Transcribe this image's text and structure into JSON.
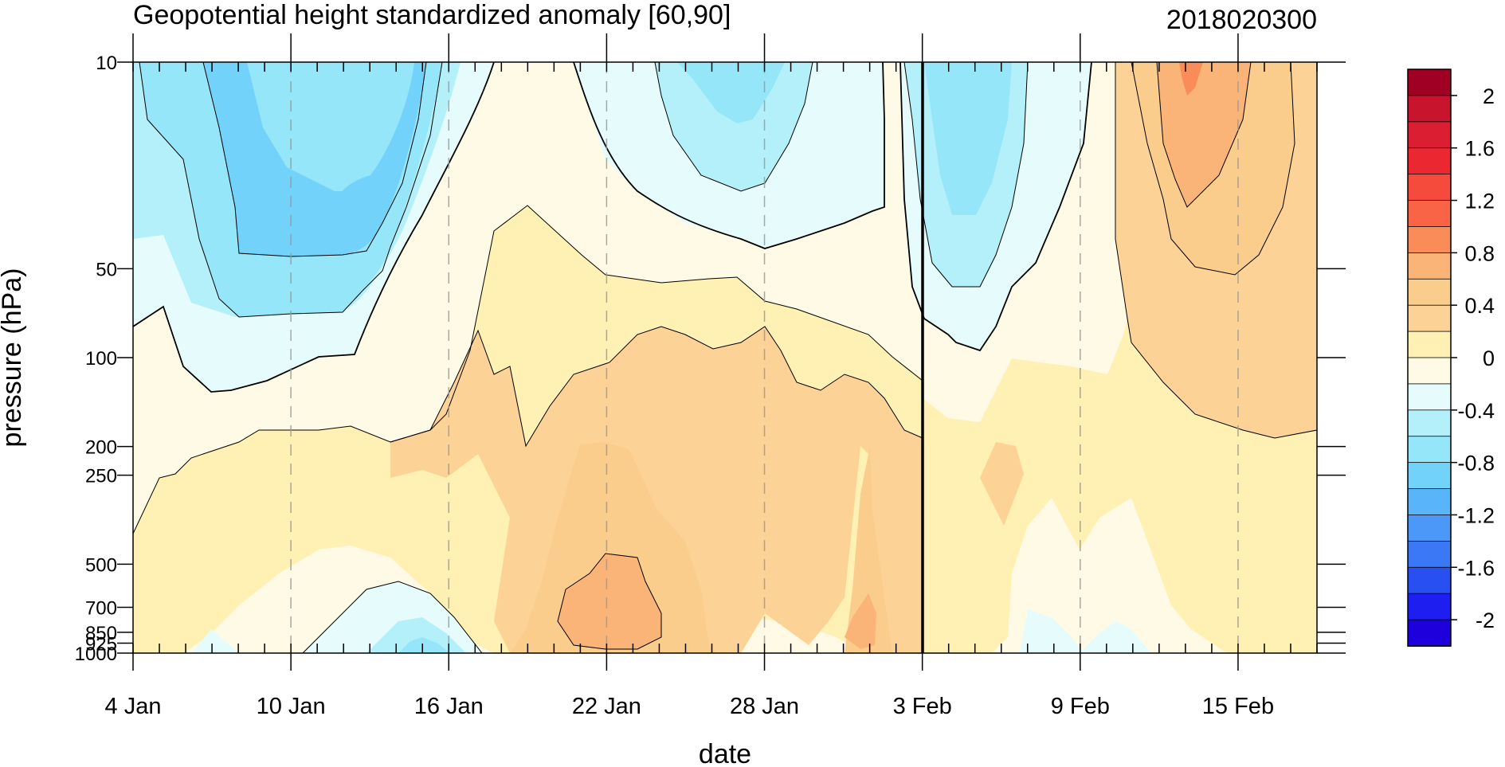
{
  "chart_data": {
    "type": "heatmap",
    "title": "Geopotential height standardized anomaly [60,90]",
    "date_stamp": "2018020300",
    "xlabel": "date",
    "ylabel": "pressure (hPa)",
    "x_range": [
      "2018-01-04",
      "2018-02-18"
    ],
    "x_ticks": [
      {
        "date": "2018-01-04",
        "label": "4 Jan"
      },
      {
        "date": "2018-01-10",
        "label": "10 Jan"
      },
      {
        "date": "2018-01-16",
        "label": "16 Jan"
      },
      {
        "date": "2018-01-22",
        "label": "22 Jan"
      },
      {
        "date": "2018-01-28",
        "label": "28 Jan"
      },
      {
        "date": "2018-02-03",
        "label": "3 Feb"
      },
      {
        "date": "2018-02-09",
        "label": "9 Feb"
      },
      {
        "date": "2018-02-15",
        "label": "15 Feb"
      }
    ],
    "y_scale": "log",
    "y_range": [
      1000,
      10
    ],
    "y_ticks": [
      {
        "value": 10,
        "label": "10"
      },
      {
        "value": 50,
        "label": "50"
      },
      {
        "value": 100,
        "label": "100"
      },
      {
        "value": 200,
        "label": "200"
      },
      {
        "value": 250,
        "label": "250"
      },
      {
        "value": 500,
        "label": "500"
      },
      {
        "value": 700,
        "label": "700"
      },
      {
        "value": 850,
        "label": "850"
      },
      {
        "value": 925,
        "label": "925"
      },
      {
        "value": 1000,
        "label": "1000"
      }
    ],
    "grid": "dashed vertical lines at date ticks",
    "forecast_start_marker": "2018-02-03",
    "colorbar": {
      "levels": [
        -2.2,
        -2,
        -1.8,
        -1.6,
        -1.4,
        -1.2,
        -1,
        -0.8,
        -0.6,
        -0.4,
        -0.2,
        0,
        0.2,
        0.4,
        0.6,
        0.8,
        1,
        1.2,
        1.4,
        1.6,
        1.8,
        2,
        2.2
      ],
      "colors": [
        "#1e00dc",
        "#1e1ef0",
        "#2850f0",
        "#3a78f5",
        "#4c98f8",
        "#5ab4fa",
        "#73d2fa",
        "#96e6fa",
        "#b4f0fa",
        "#e6fcfc",
        "#fffae6",
        "#fff0b4",
        "#fcd296",
        "#facd8c",
        "#fab478",
        "#fa8c5a",
        "#fa6446",
        "#f54b3c",
        "#eb2832",
        "#dc1e32",
        "#c8142d",
        "#a00023"
      ],
      "tick_labels": [
        "2",
        "1.6",
        "1.2",
        "0.8",
        "0.4",
        "0",
        "-0.4",
        "-0.8",
        "-1.2",
        "-1.6",
        "-2"
      ]
    },
    "contour_regions": [
      {
        "band": "-0.6 to -0.4",
        "color": "#b4f0fa",
        "span": "4-10 Jan",
        "pressure": "10-85 hPa"
      },
      {
        "band": "-0.8 to -0.6",
        "color": "#96e6fa",
        "span": "6-14 Jan",
        "pressure": "10-70 hPa"
      },
      {
        "band": "-1.0 to -0.8",
        "color": "#73d2fa",
        "span": "8-13 Jan",
        "pressure": "10-45 hPa"
      },
      {
        "band": "-0.4 to -0.2",
        "color": "#b4f0fa",
        "span": "13-17 Jan",
        "pressure": "750-1000 hPa"
      },
      {
        "band": "0.2 to 0.4",
        "color": "#fff0b4",
        "span": "15 Jan-3 Feb",
        "pressure": "40-300 hPa"
      },
      {
        "band": "0.4 to 0.6",
        "color": "#fcd296",
        "span": "17 Jan-3 Feb",
        "pressure": "100-1000 hPa"
      },
      {
        "band": "0.8 to 1.0",
        "color": "#fab478",
        "span": "21-24 Jan",
        "pressure": "500-950 hPa"
      },
      {
        "band": "-0.4 to -0.2",
        "color": "#e6fcfc",
        "span": "21 Jan-1 Feb",
        "pressure": "10-45 hPa"
      },
      {
        "band": "-0.8 to -0.6",
        "color": "#96e6fa",
        "span": "24-28 Jan",
        "pressure": "10-25 hPa"
      },
      {
        "band": "-0.8 to -0.4",
        "color": "#96e6fa",
        "span": "2-7 Feb",
        "pressure": "10-60 hPa"
      },
      {
        "band": "0.4 to 0.8",
        "color": "#fcd296",
        "span": "10-18 Feb",
        "pressure": "10-200 hPa"
      },
      {
        "band": "1.0 to 1.2",
        "color": "#fab478",
        "span": "12-16 Feb",
        "pressure": "10-45 hPa"
      },
      {
        "band": "1.2 to 1.4",
        "color": "#fa8c5a",
        "span": "13-14 Feb",
        "pressure": "10-15 hPa"
      }
    ]
  }
}
